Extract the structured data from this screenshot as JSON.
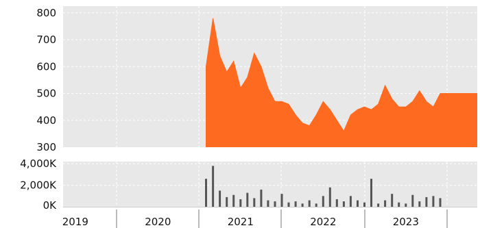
{
  "chart_data": [
    {
      "type": "area",
      "title": "",
      "xlabel": "",
      "ylabel": "",
      "grid": true,
      "color": "#ff6a21",
      "background": "#e8e8e8",
      "ylim": [
        300,
        825
      ],
      "yticks": [
        {
          "value": 300,
          "label": "300"
        },
        {
          "value": 400,
          "label": "400"
        },
        {
          "value": 500,
          "label": "500"
        },
        {
          "value": 600,
          "label": "600"
        },
        {
          "value": 700,
          "label": "700"
        },
        {
          "value": 800,
          "label": "800"
        }
      ],
      "x_start": "2021-02",
      "x_end": "2023-12",
      "x": [
        "2021-02",
        "2021-03",
        "2021-04",
        "2021-05",
        "2021-06",
        "2021-07",
        "2021-08",
        "2021-09",
        "2021-10",
        "2021-11",
        "2021-12",
        "2022-01",
        "2022-02",
        "2022-03",
        "2022-04",
        "2022-05",
        "2022-06",
        "2022-07",
        "2022-08",
        "2022-09",
        "2022-10",
        "2022-11",
        "2022-12",
        "2023-01",
        "2023-02",
        "2023-03",
        "2023-04",
        "2023-05",
        "2023-06",
        "2023-07",
        "2023-08",
        "2023-09",
        "2023-10",
        "2023-11",
        "2023-12"
      ],
      "values": [
        600,
        780,
        640,
        580,
        620,
        520,
        560,
        650,
        600,
        520,
        470,
        470,
        460,
        420,
        390,
        380,
        420,
        470,
        440,
        400,
        360,
        420,
        440,
        450,
        440,
        460,
        530,
        480,
        450,
        450,
        470,
        510,
        470,
        450,
        500
      ]
    },
    {
      "type": "bar",
      "title": "",
      "xlabel": "",
      "ylabel": "",
      "grid": true,
      "color": "#555555",
      "background": "#e8e8e8",
      "ylim": [
        0,
        4200
      ],
      "yticks": [
        {
          "value": 0,
          "label": "0K"
        },
        {
          "value": 2000,
          "label": "2,000K"
        },
        {
          "value": 4000,
          "label": "4,000K"
        }
      ],
      "x_start": "2021-02",
      "x_end": "2023-12",
      "x": [
        "2021-02",
        "2021-03",
        "2021-04",
        "2021-05",
        "2021-06",
        "2021-07",
        "2021-08",
        "2021-09",
        "2021-10",
        "2021-11",
        "2021-12",
        "2022-01",
        "2022-02",
        "2022-03",
        "2022-04",
        "2022-05",
        "2022-06",
        "2022-07",
        "2022-08",
        "2022-09",
        "2022-10",
        "2022-11",
        "2022-12",
        "2023-01",
        "2023-02",
        "2023-03",
        "2023-04",
        "2023-05",
        "2023-06",
        "2023-07",
        "2023-08",
        "2023-09",
        "2023-10",
        "2023-11",
        "2023-12"
      ],
      "values": [
        2600,
        3800,
        1500,
        900,
        1100,
        700,
        1300,
        800,
        1600,
        600,
        500,
        1200,
        400,
        500,
        300,
        600,
        300,
        1000,
        1800,
        700,
        500,
        1000,
        600,
        400,
        2600,
        300,
        600,
        1200,
        400,
        300,
        1100,
        500,
        900,
        1000,
        800
      ]
    }
  ],
  "x_axis": {
    "labels": [
      "2019",
      "2020",
      "2021",
      "2022",
      "2023"
    ]
  }
}
